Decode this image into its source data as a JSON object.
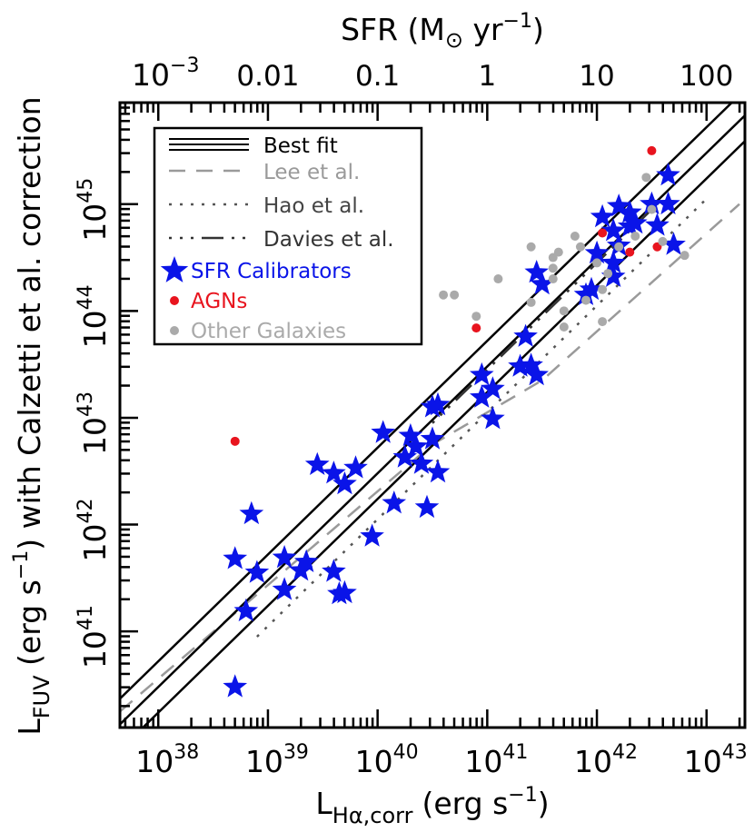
{
  "chart_data": {
    "type": "scatter",
    "x_axis": {
      "label_main": "L",
      "label_sub": "Hα,corr",
      "label_unit": "(erg s",
      "label_exp": "−1",
      "label_close": ")",
      "scale": "log",
      "range": [
        37.65,
        43.35
      ],
      "ticks": [
        {
          "value": 38,
          "base": "10",
          "exp": "38"
        },
        {
          "value": 39,
          "base": "10",
          "exp": "39"
        },
        {
          "value": 40,
          "base": "10",
          "exp": "40"
        },
        {
          "value": 41,
          "base": "10",
          "exp": "41"
        },
        {
          "value": 42,
          "base": "10",
          "exp": "42"
        },
        {
          "value": 43,
          "base": "10",
          "exp": "43"
        }
      ]
    },
    "top_axis": {
      "label_main": "SFR (M",
      "label_sub": "⊙",
      "label_unit": " yr",
      "label_exp": "−1",
      "label_close": ")",
      "scale": "log",
      "ticks": [
        {
          "value": -3,
          "text": "",
          "base": "10",
          "exp": "−3"
        },
        {
          "value": -2,
          "text": "0.01",
          "base": "",
          "exp": ""
        },
        {
          "value": -1,
          "text": "0.1",
          "base": "",
          "exp": ""
        },
        {
          "value": 0,
          "text": "1",
          "base": "",
          "exp": ""
        },
        {
          "value": 1,
          "text": "10",
          "base": "",
          "exp": ""
        },
        {
          "value": 2,
          "text": "100",
          "base": "",
          "exp": ""
        }
      ]
    },
    "y_axis": {
      "label_main": "L",
      "label_sub": "FUV",
      "label_unit": " (erg s",
      "label_exp": "−1",
      "label_close": ") with Calzetti et al. correction",
      "scale": "log",
      "range": [
        40.1,
        45.95
      ],
      "ticks": [
        {
          "value": 41,
          "base": "10",
          "exp": "41"
        },
        {
          "value": 42,
          "base": "10",
          "exp": "42"
        },
        {
          "value": 43,
          "base": "10",
          "exp": "43"
        },
        {
          "value": 44,
          "base": "10",
          "exp": "44"
        },
        {
          "value": 45,
          "base": "10",
          "exp": "45"
        }
      ]
    },
    "legend": {
      "placement": "top-left",
      "entries": [
        {
          "label": "Best fit",
          "style": "triple-line",
          "color": "#000000"
        },
        {
          "label": "Lee et al.",
          "style": "dashed",
          "color": "#9a9a9a"
        },
        {
          "label": "Hao et al.",
          "style": "dotted",
          "color": "#555555"
        },
        {
          "label": "Davies et al.",
          "style": "dot-dash",
          "color": "#333333"
        },
        {
          "label": "SFR Calibrators",
          "style": "star",
          "color": "#0a14e8"
        },
        {
          "label": "AGNs",
          "style": "dot",
          "color": "#e8141e"
        },
        {
          "label": "Other Galaxies",
          "style": "dot",
          "color": "#aaaaaa"
        }
      ]
    },
    "fit_lines": {
      "best_fit": {
        "slope": 1.0,
        "intercepts": [
          2.72,
          2.48,
          2.24
        ],
        "color": "#000000"
      },
      "lee": {
        "x": [
          37.65,
          40.5,
          41.5,
          43.3
        ],
        "y": [
          40.25,
          42.75,
          43.35,
          45.0
        ],
        "color": "#9a9a9a"
      },
      "hao": {
        "x": [
          38.9,
          43.0
        ],
        "y": [
          40.95,
          45.05
        ],
        "color": "#555555"
      },
      "davies": {
        "x": [
          40.5,
          42.6
        ],
        "y": [
          42.95,
          45.05
        ],
        "color": "#333333"
      }
    },
    "series": [
      {
        "name": "SFR Calibrators",
        "marker": "star",
        "color": "#0a14e8",
        "points": [
          [
            38.7,
            40.48
          ],
          [
            38.7,
            41.68
          ],
          [
            38.8,
            41.19
          ],
          [
            38.85,
            42.1
          ],
          [
            38.9,
            41.55
          ],
          [
            39.15,
            41.69
          ],
          [
            39.15,
            41.39
          ],
          [
            39.3,
            41.57
          ],
          [
            39.35,
            41.65
          ],
          [
            39.45,
            42.56
          ],
          [
            39.6,
            41.56
          ],
          [
            39.6,
            42.48
          ],
          [
            39.65,
            41.35
          ],
          [
            39.7,
            42.38
          ],
          [
            39.7,
            41.36
          ],
          [
            39.8,
            42.53
          ],
          [
            39.95,
            41.89
          ],
          [
            40.05,
            42.86
          ],
          [
            40.15,
            42.2
          ],
          [
            40.25,
            42.63
          ],
          [
            40.3,
            42.83
          ],
          [
            40.35,
            42.73
          ],
          [
            40.4,
            42.57
          ],
          [
            40.45,
            42.16
          ],
          [
            40.5,
            42.8
          ],
          [
            40.5,
            43.1
          ],
          [
            40.55,
            43.12
          ],
          [
            40.55,
            42.49
          ],
          [
            40.95,
            43.4
          ],
          [
            40.95,
            43.19
          ],
          [
            41.05,
            43.27
          ],
          [
            41.05,
            42.99
          ],
          [
            41.3,
            43.48
          ],
          [
            41.35,
            43.76
          ],
          [
            41.4,
            43.49
          ],
          [
            41.45,
            43.4
          ],
          [
            41.45,
            44.36
          ],
          [
            41.5,
            44.25
          ],
          [
            41.9,
            44.15
          ],
          [
            41.95,
            44.2
          ],
          [
            42.0,
            44.54
          ],
          [
            42.05,
            44.88
          ],
          [
            42.15,
            44.32
          ],
          [
            42.15,
            44.45
          ],
          [
            42.2,
            44.98
          ],
          [
            42.2,
            44.61
          ],
          [
            42.3,
            44.79
          ],
          [
            42.3,
            44.92
          ],
          [
            42.35,
            44.82
          ],
          [
            42.5,
            45
          ],
          [
            42.55,
            44.8
          ],
          [
            42.65,
            45.27
          ],
          [
            42.65,
            45
          ],
          [
            42.7,
            44.62
          ],
          [
            42.15,
            44.75
          ]
        ]
      },
      {
        "name": "AGNs",
        "marker": "dot",
        "color": "#e8141e",
        "points": [
          [
            38.7,
            42.78
          ],
          [
            40.9,
            43.84
          ],
          [
            42.05,
            44.73
          ],
          [
            42.3,
            44.55
          ],
          [
            42.5,
            45.5
          ],
          [
            42.55,
            44.6
          ]
        ]
      },
      {
        "name": "Other Galaxies",
        "marker": "dot",
        "color": "#aaaaaa",
        "points": [
          [
            40.6,
            44.15
          ],
          [
            40.7,
            44.15
          ],
          [
            40.9,
            43.95
          ],
          [
            41.1,
            44.3
          ],
          [
            41.4,
            44.6
          ],
          [
            41.4,
            44.08
          ],
          [
            41.6,
            44.3
          ],
          [
            41.6,
            44.4
          ],
          [
            41.6,
            44.5
          ],
          [
            41.8,
            44.7
          ],
          [
            41.85,
            44.6
          ],
          [
            42.0,
            44.45
          ],
          [
            42.05,
            44.2
          ],
          [
            42.05,
            43.9
          ],
          [
            42.2,
            44.6
          ],
          [
            42.35,
            44.7
          ],
          [
            42.45,
            45.25
          ],
          [
            42.5,
            44.95
          ],
          [
            42.6,
            44.65
          ],
          [
            42.8,
            44.52
          ],
          [
            41.7,
            44.0
          ],
          [
            41.9,
            44.1
          ],
          [
            42.1,
            44.35
          ],
          [
            41.7,
            43.85
          ],
          [
            41.65,
            44.55
          ]
        ]
      }
    ]
  }
}
